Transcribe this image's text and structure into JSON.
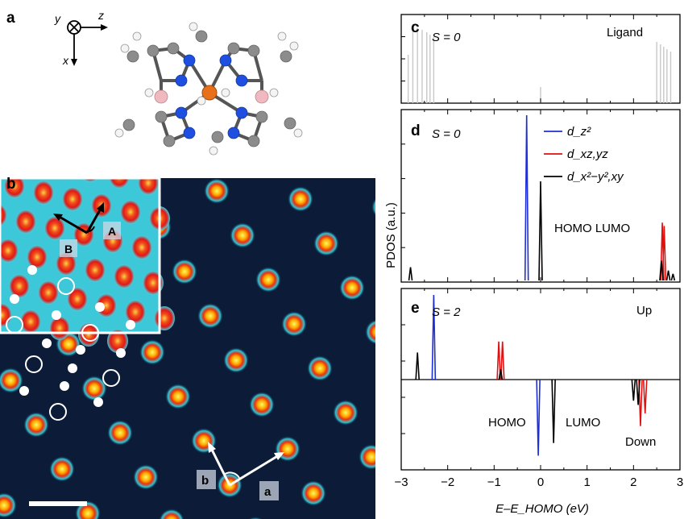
{
  "panels": {
    "a": {
      "label": "a",
      "axes": {
        "y": "y",
        "z": "z",
        "x": "x"
      }
    },
    "b": {
      "label": "b",
      "inset_tags": [
        "A",
        "B"
      ],
      "lattice_tags": [
        "b",
        "a"
      ]
    },
    "c": {
      "label": "c",
      "spin": "S = 0",
      "title": "Ligand"
    },
    "d": {
      "label": "d",
      "spin": "S = 0",
      "annotation": "HOMO LUMO",
      "legend": [
        {
          "label": "d_z²",
          "color": "#1f2fd6"
        },
        {
          "label": "d_xz,yz",
          "color": "#e01010"
        },
        {
          "label": "d_x²−y²,xy",
          "color": "#000000"
        }
      ]
    },
    "e": {
      "label": "e",
      "spin": "S = 2",
      "up_label": "Up",
      "down_label": "Down",
      "homo_label": "HOMO",
      "lumo_label": "LUMO"
    }
  },
  "yaxis_label": "PDOS (a.u.)",
  "xaxis_label": "E–E_HOMO (eV)",
  "colors": {
    "blue": "#1f2fd6",
    "red": "#e01010",
    "black": "#000000",
    "gray": "#c8c8c8",
    "stm_bg": "#0c1c38"
  },
  "chart_data": {
    "type": "line",
    "xlim": [
      -3,
      3
    ],
    "x_ticks": [
      "−3",
      "−2",
      "−1",
      "0",
      "1",
      "2",
      "3"
    ],
    "panels": [
      {
        "id": "c",
        "series": [
          {
            "name": "Ligand",
            "peaks_x": [
              -2.85,
              -2.75,
              -2.65,
              -2.55,
              -2.45,
              -2.38,
              -2.3,
              0.0,
              2.5,
              2.58,
              2.65,
              2.72,
              2.8
            ]
          }
        ]
      },
      {
        "id": "d",
        "series": [
          {
            "name": "d_z²",
            "peaks": [
              [
                -0.3,
                1.0
              ]
            ]
          },
          {
            "name": "d_xz,yz",
            "peaks": [
              [
                2.62,
                0.35
              ],
              [
                2.66,
                0.33
              ]
            ]
          },
          {
            "name": "d_x²−y²,xy",
            "peaks": [
              [
                -2.8,
                0.08
              ],
              [
                0.0,
                0.6
              ],
              [
                2.6,
                0.12
              ],
              [
                2.75,
                0.06
              ],
              [
                2.85,
                0.04
              ]
            ]
          }
        ]
      },
      {
        "id": "e",
        "series": [
          {
            "name": "d_z²",
            "peaks": [
              [
                -2.3,
                1.0
              ],
              [
                -0.05,
                -0.9
              ]
            ]
          },
          {
            "name": "d_xz,yz",
            "peaks": [
              [
                -0.9,
                0.45
              ],
              [
                -0.82,
                0.45
              ],
              [
                2.15,
                -0.55
              ],
              [
                2.25,
                -0.4
              ]
            ]
          },
          {
            "name": "d_x²−y²,xy",
            "peaks": [
              [
                -2.65,
                0.32
              ],
              [
                -0.86,
                0.12
              ],
              [
                0.28,
                -0.75
              ],
              [
                2.0,
                -0.25
              ],
              [
                2.1,
                -0.3
              ]
            ]
          }
        ]
      }
    ]
  }
}
